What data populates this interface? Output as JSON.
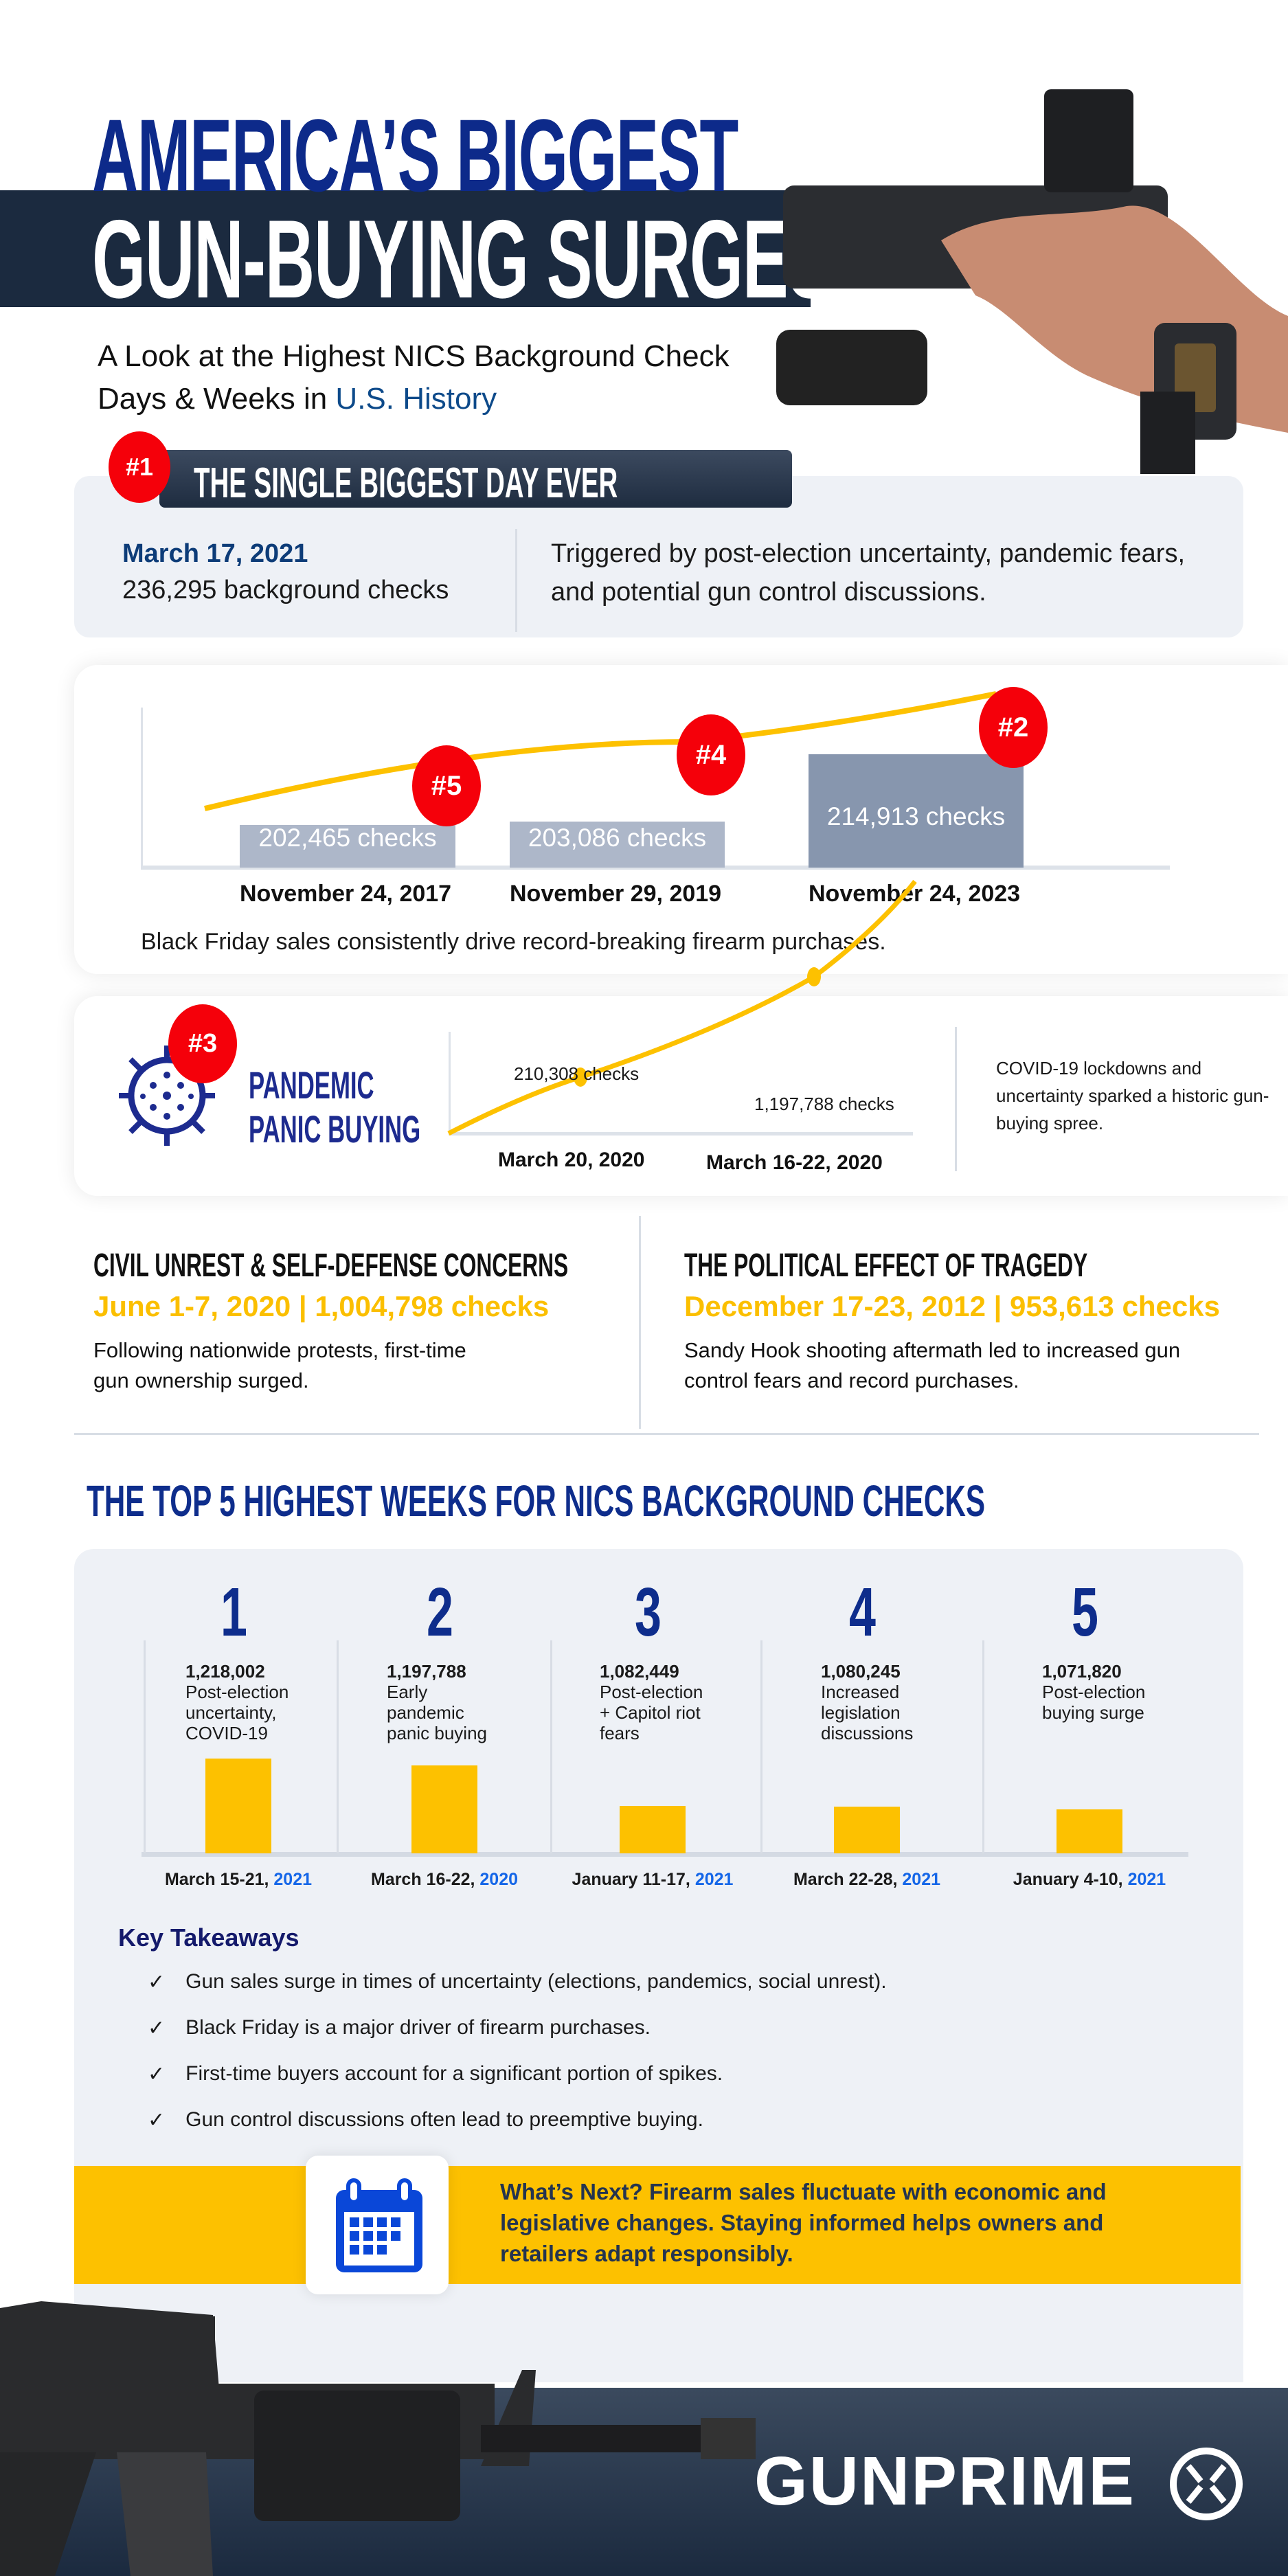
{
  "header": {
    "title_line1": "AMERICA’S BIGGEST",
    "title_line2": "GUN-BUYING SURGES",
    "subtitle_a": "A Look at the Highest NICS Background Check",
    "subtitle_b": "Days & Weeks in ",
    "subtitle_highlight": "U.S. History"
  },
  "biggest_day": {
    "badge": "#1",
    "heading": "THE SINGLE BIGGEST DAY EVER",
    "date": "March 17, 2021",
    "checks": "236,295 background checks",
    "description": "Triggered by post-election uncertainty, pandemic fears, and potential gun control discussions."
  },
  "black_friday": {
    "bars": [
      {
        "badge": "#5",
        "label": "202,465  checks",
        "date": "November 24, 2017",
        "value": 202465
      },
      {
        "badge": "#4",
        "label": "203,086 checks",
        "date": "November 29, 2019",
        "value": 203086
      },
      {
        "badge": "#2",
        "label": "214,913 checks",
        "date": "November 24, 2023",
        "value": 214913
      }
    ],
    "caption": "Black Friday sales consistently drive record-breaking firearm purchases."
  },
  "pandemic": {
    "badge": "#3",
    "title_line1": "PANDEMIC",
    "title_line2": "PANIC BUYING",
    "point1_label": "210,308 checks",
    "point1_date": "March 20, 2020",
    "point2_label": "1,197,788 checks",
    "point2_date": "March 16-22, 2020",
    "description": "COVID-19 lockdowns and uncertainty sparked a historic gun-buying spree."
  },
  "civil_unrest": {
    "heading": "CIVIL UNREST & SELF-DEFENSE CONCERNS",
    "stat": "June 1-7, 2020 | 1,004,798 checks",
    "body": "Following nationwide protests, first-time gun ownership surged."
  },
  "tragedy": {
    "heading": "THE POLITICAL EFFECT OF TRAGEDY",
    "stat": "December 17-23, 2012 | 953,613 checks",
    "body": "Sandy Hook shooting aftermath led to increased gun control fears and record purchases."
  },
  "top5": {
    "heading": "THE TOP 5 HIGHEST WEEKS FOR NICS BACKGROUND CHECKS",
    "weeks": [
      {
        "rank": "1",
        "value": "1,218,002",
        "n": 1218002,
        "reason": "Post-election uncertainty, COVID-19",
        "dates": "March 15-21, ",
        "year": "2021"
      },
      {
        "rank": "2",
        "value": "1,197,788",
        "n": 1197788,
        "reason": "Early pandemic panic buying",
        "dates": "March 16-22, ",
        "year": "2020"
      },
      {
        "rank": "3",
        "value": "1,082,449",
        "n": 1082449,
        "reason": "Post-election + Capitol riot fears",
        "dates": "January 11-17, ",
        "year": "2021"
      },
      {
        "rank": "4",
        "value": "1,080,245",
        "n": 1080245,
        "reason": "Increased legislation discussions",
        "dates": "March 22-28, ",
        "year": "2021"
      },
      {
        "rank": "5",
        "value": "1,071,820",
        "n": 1071820,
        "reason": "Post-election buying surge",
        "dates": "January 4-10, ",
        "year": "2021"
      }
    ]
  },
  "takeaways": {
    "heading": "Key Takeaways",
    "items": [
      "Gun sales surge in times of uncertainty (elections, pandemics, social unrest).",
      "Black Friday is a major driver of firearm purchases.",
      "First-time buyers account for a significant portion of spikes.",
      "Gun control discussions often lead to preemptive buying."
    ]
  },
  "whats_next": {
    "icon": "calendar-icon",
    "text": "What’s Next? Firearm sales fluctuate with economic and legislative changes. Staying informed helps owners and retailers adapt responsibly."
  },
  "footer": {
    "logo": "GUNPRIME"
  },
  "colors": {
    "navy": "#1b2a3f",
    "title_blue": "#0d2a8a",
    "accent_yellow": "#fdc100",
    "badge_red": "#f5000a",
    "bar_gray": "#adb7c9",
    "bar_dark": "#8796ae"
  }
}
